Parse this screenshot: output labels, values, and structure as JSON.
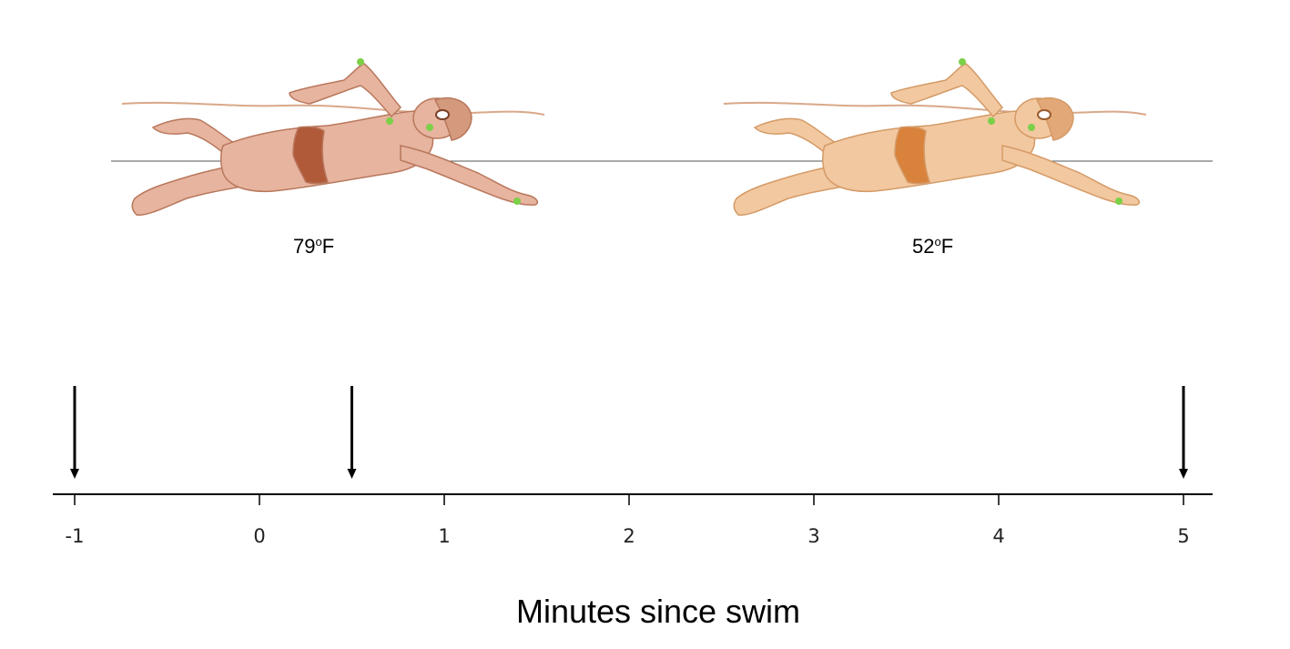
{
  "swimmers": [
    {
      "temp_value": "79",
      "temp_degree": "o",
      "temp_unit": "F",
      "skin": "#e6b49f",
      "skin_stroke": "#b9775c",
      "suit": "#b05a3a",
      "cap": "#d49a7e"
    },
    {
      "temp_value": "52",
      "temp_degree": "o",
      "temp_unit": "F",
      "skin": "#f2c8a0",
      "skin_stroke": "#d49a66",
      "suit": "#d9823c",
      "cap": "#e2a878"
    }
  ],
  "sensor_color": "#7bd048",
  "water_color": "#d9a889",
  "timeline": {
    "ticks": [
      "-1",
      "0",
      "1",
      "2",
      "3",
      "4",
      "5"
    ],
    "arrows": [
      -1,
      0.5,
      5
    ],
    "axis_label": "Minutes since swim"
  }
}
